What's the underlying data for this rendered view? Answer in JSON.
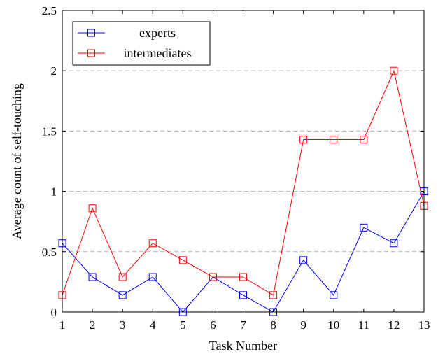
{
  "chart_data": {
    "type": "line",
    "title": "",
    "xlabel": "Task Number",
    "ylabel": "Average count of self-touching",
    "x": [
      1,
      2,
      3,
      4,
      5,
      6,
      7,
      8,
      9,
      10,
      11,
      12,
      13
    ],
    "xlim": [
      1,
      13
    ],
    "ylim": [
      0,
      2.5
    ],
    "yticks": [
      0,
      0.5,
      1,
      1.5,
      2,
      2.5
    ],
    "ytick_labels": [
      "0",
      "0.5",
      "1",
      "1.5",
      "2",
      "2.5"
    ],
    "grid": "horizontal dashed",
    "legend_position": "top-left",
    "series": [
      {
        "name": "experts",
        "color": "#0000ff",
        "marker": "square",
        "values": [
          0.57,
          0.29,
          0.14,
          0.29,
          0.0,
          0.29,
          0.14,
          0.0,
          0.43,
          0.14,
          0.7,
          0.57,
          1.0
        ]
      },
      {
        "name": "intermediates",
        "color": "#ff0000",
        "marker": "square",
        "values": [
          0.14,
          0.86,
          0.29,
          0.57,
          0.43,
          0.29,
          0.29,
          0.14,
          1.43,
          1.43,
          1.43,
          2.0,
          0.88
        ]
      }
    ]
  }
}
